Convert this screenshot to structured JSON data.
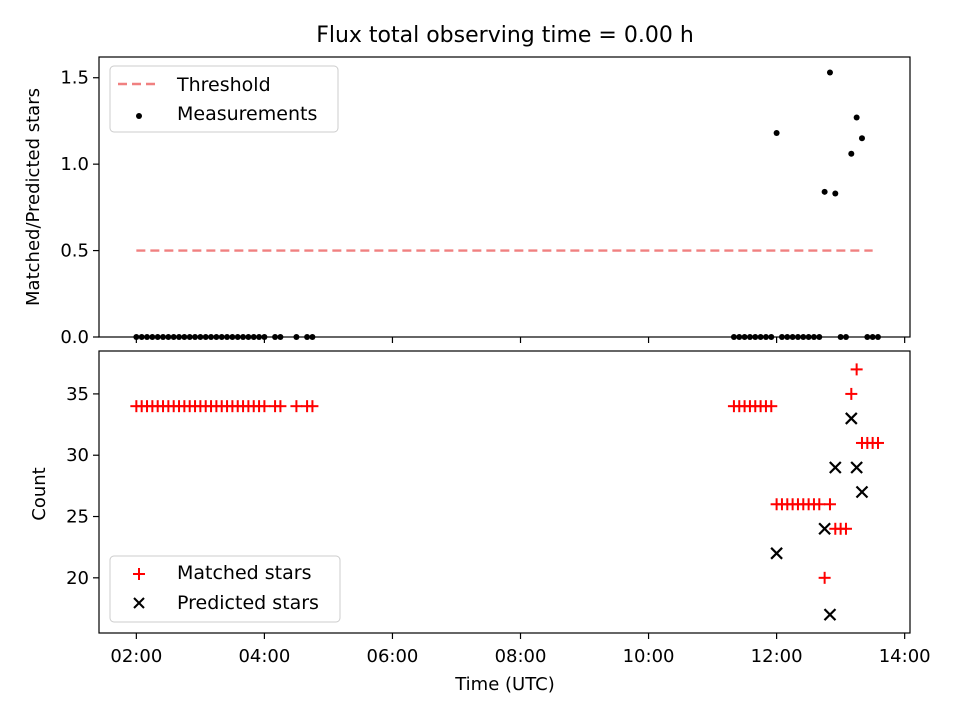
{
  "title": "Flux total observing time = 0.00 h",
  "xlabel": "Time (UTC)",
  "colors": {
    "threshold": "#f08080",
    "measurement": "#000000",
    "matched": "#ff0000",
    "predicted": "#000000"
  },
  "chart_data": [
    {
      "type": "scatter",
      "ylabel": "Matched/Predicted stars",
      "xlim": [
        "01:25",
        "14:05"
      ],
      "ylim": [
        0,
        1.62
      ],
      "yticks": [
        "0.0",
        "0.5",
        "1.0",
        "1.5"
      ],
      "xticks": [
        "02:00",
        "04:00",
        "06:00",
        "08:00",
        "10:00",
        "12:00",
        "14:00"
      ],
      "grid": false,
      "legend_position": "top-left",
      "threshold": {
        "name": "Threshold",
        "value": 0.5,
        "x_range": [
          "02:00",
          "13:30"
        ],
        "style": "dashed"
      },
      "series": [
        {
          "name": "Measurements",
          "marker": "dot",
          "x": [
            "02:00",
            "02:05",
            "02:10",
            "02:15",
            "02:20",
            "02:25",
            "02:30",
            "02:35",
            "02:40",
            "02:45",
            "02:50",
            "02:55",
            "03:00",
            "03:05",
            "03:10",
            "03:15",
            "03:20",
            "03:25",
            "03:30",
            "03:35",
            "03:40",
            "03:45",
            "03:50",
            "03:55",
            "04:00",
            "04:10",
            "04:15",
            "04:30",
            "04:40",
            "04:45",
            "11:20",
            "11:25",
            "11:30",
            "11:35",
            "11:40",
            "11:45",
            "11:50",
            "11:55",
            "12:00",
            "12:05",
            "12:10",
            "12:15",
            "12:20",
            "12:25",
            "12:30",
            "12:35",
            "12:40",
            "12:45",
            "12:50",
            "12:55",
            "13:00",
            "13:05",
            "13:10",
            "13:15",
            "13:20",
            "13:25",
            "13:30",
            "13:35"
          ],
          "y": [
            0,
            0,
            0,
            0,
            0,
            0,
            0,
            0,
            0,
            0,
            0,
            0,
            0,
            0,
            0,
            0,
            0,
            0,
            0,
            0,
            0,
            0,
            0,
            0,
            0,
            0,
            0,
            0,
            0,
            0,
            0,
            0,
            0,
            0,
            0,
            0,
            0,
            0,
            1.18,
            0,
            0,
            0,
            0,
            0,
            0,
            0,
            0,
            0.84,
            1.53,
            0.83,
            0,
            0,
            1.06,
            1.27,
            1.15,
            0,
            0,
            0
          ]
        }
      ]
    },
    {
      "type": "scatter",
      "ylabel": "Count",
      "xlabel": "Time (UTC)",
      "xlim": [
        "01:25",
        "14:05"
      ],
      "ylim": [
        15.5,
        38.5
      ],
      "yticks": [
        "20",
        "25",
        "30",
        "35"
      ],
      "xticks": [
        "02:00",
        "04:00",
        "06:00",
        "08:00",
        "10:00",
        "12:00",
        "14:00"
      ],
      "grid": false,
      "legend_position": "bottom-left",
      "series": [
        {
          "name": "Matched stars",
          "marker": "plus",
          "x": [
            "02:00",
            "02:05",
            "02:10",
            "02:15",
            "02:20",
            "02:25",
            "02:30",
            "02:35",
            "02:40",
            "02:45",
            "02:50",
            "02:55",
            "03:00",
            "03:05",
            "03:10",
            "03:15",
            "03:20",
            "03:25",
            "03:30",
            "03:35",
            "03:40",
            "03:45",
            "03:50",
            "03:55",
            "04:00",
            "04:10",
            "04:15",
            "04:30",
            "04:40",
            "04:45",
            "11:20",
            "11:25",
            "11:30",
            "11:35",
            "11:40",
            "11:45",
            "11:50",
            "11:55",
            "12:00",
            "12:05",
            "12:10",
            "12:15",
            "12:20",
            "12:25",
            "12:30",
            "12:35",
            "12:40",
            "12:45",
            "12:50",
            "12:55",
            "13:00",
            "13:05",
            "13:10",
            "13:15",
            "13:20",
            "13:25",
            "13:30",
            "13:35"
          ],
          "y": [
            34,
            34,
            34,
            34,
            34,
            34,
            34,
            34,
            34,
            34,
            34,
            34,
            34,
            34,
            34,
            34,
            34,
            34,
            34,
            34,
            34,
            34,
            34,
            34,
            34,
            34,
            34,
            34,
            34,
            34,
            34,
            34,
            34,
            34,
            34,
            34,
            34,
            34,
            26,
            26,
            26,
            26,
            26,
            26,
            26,
            26,
            26,
            20,
            26,
            24,
            24,
            24,
            35,
            37,
            31,
            31,
            31,
            31
          ]
        },
        {
          "name": "Predicted stars",
          "marker": "x",
          "x": [
            "12:00",
            "12:45",
            "12:50",
            "12:55",
            "13:10",
            "13:15",
            "13:20"
          ],
          "y": [
            22,
            24,
            17,
            29,
            33,
            29,
            27
          ]
        }
      ]
    }
  ]
}
